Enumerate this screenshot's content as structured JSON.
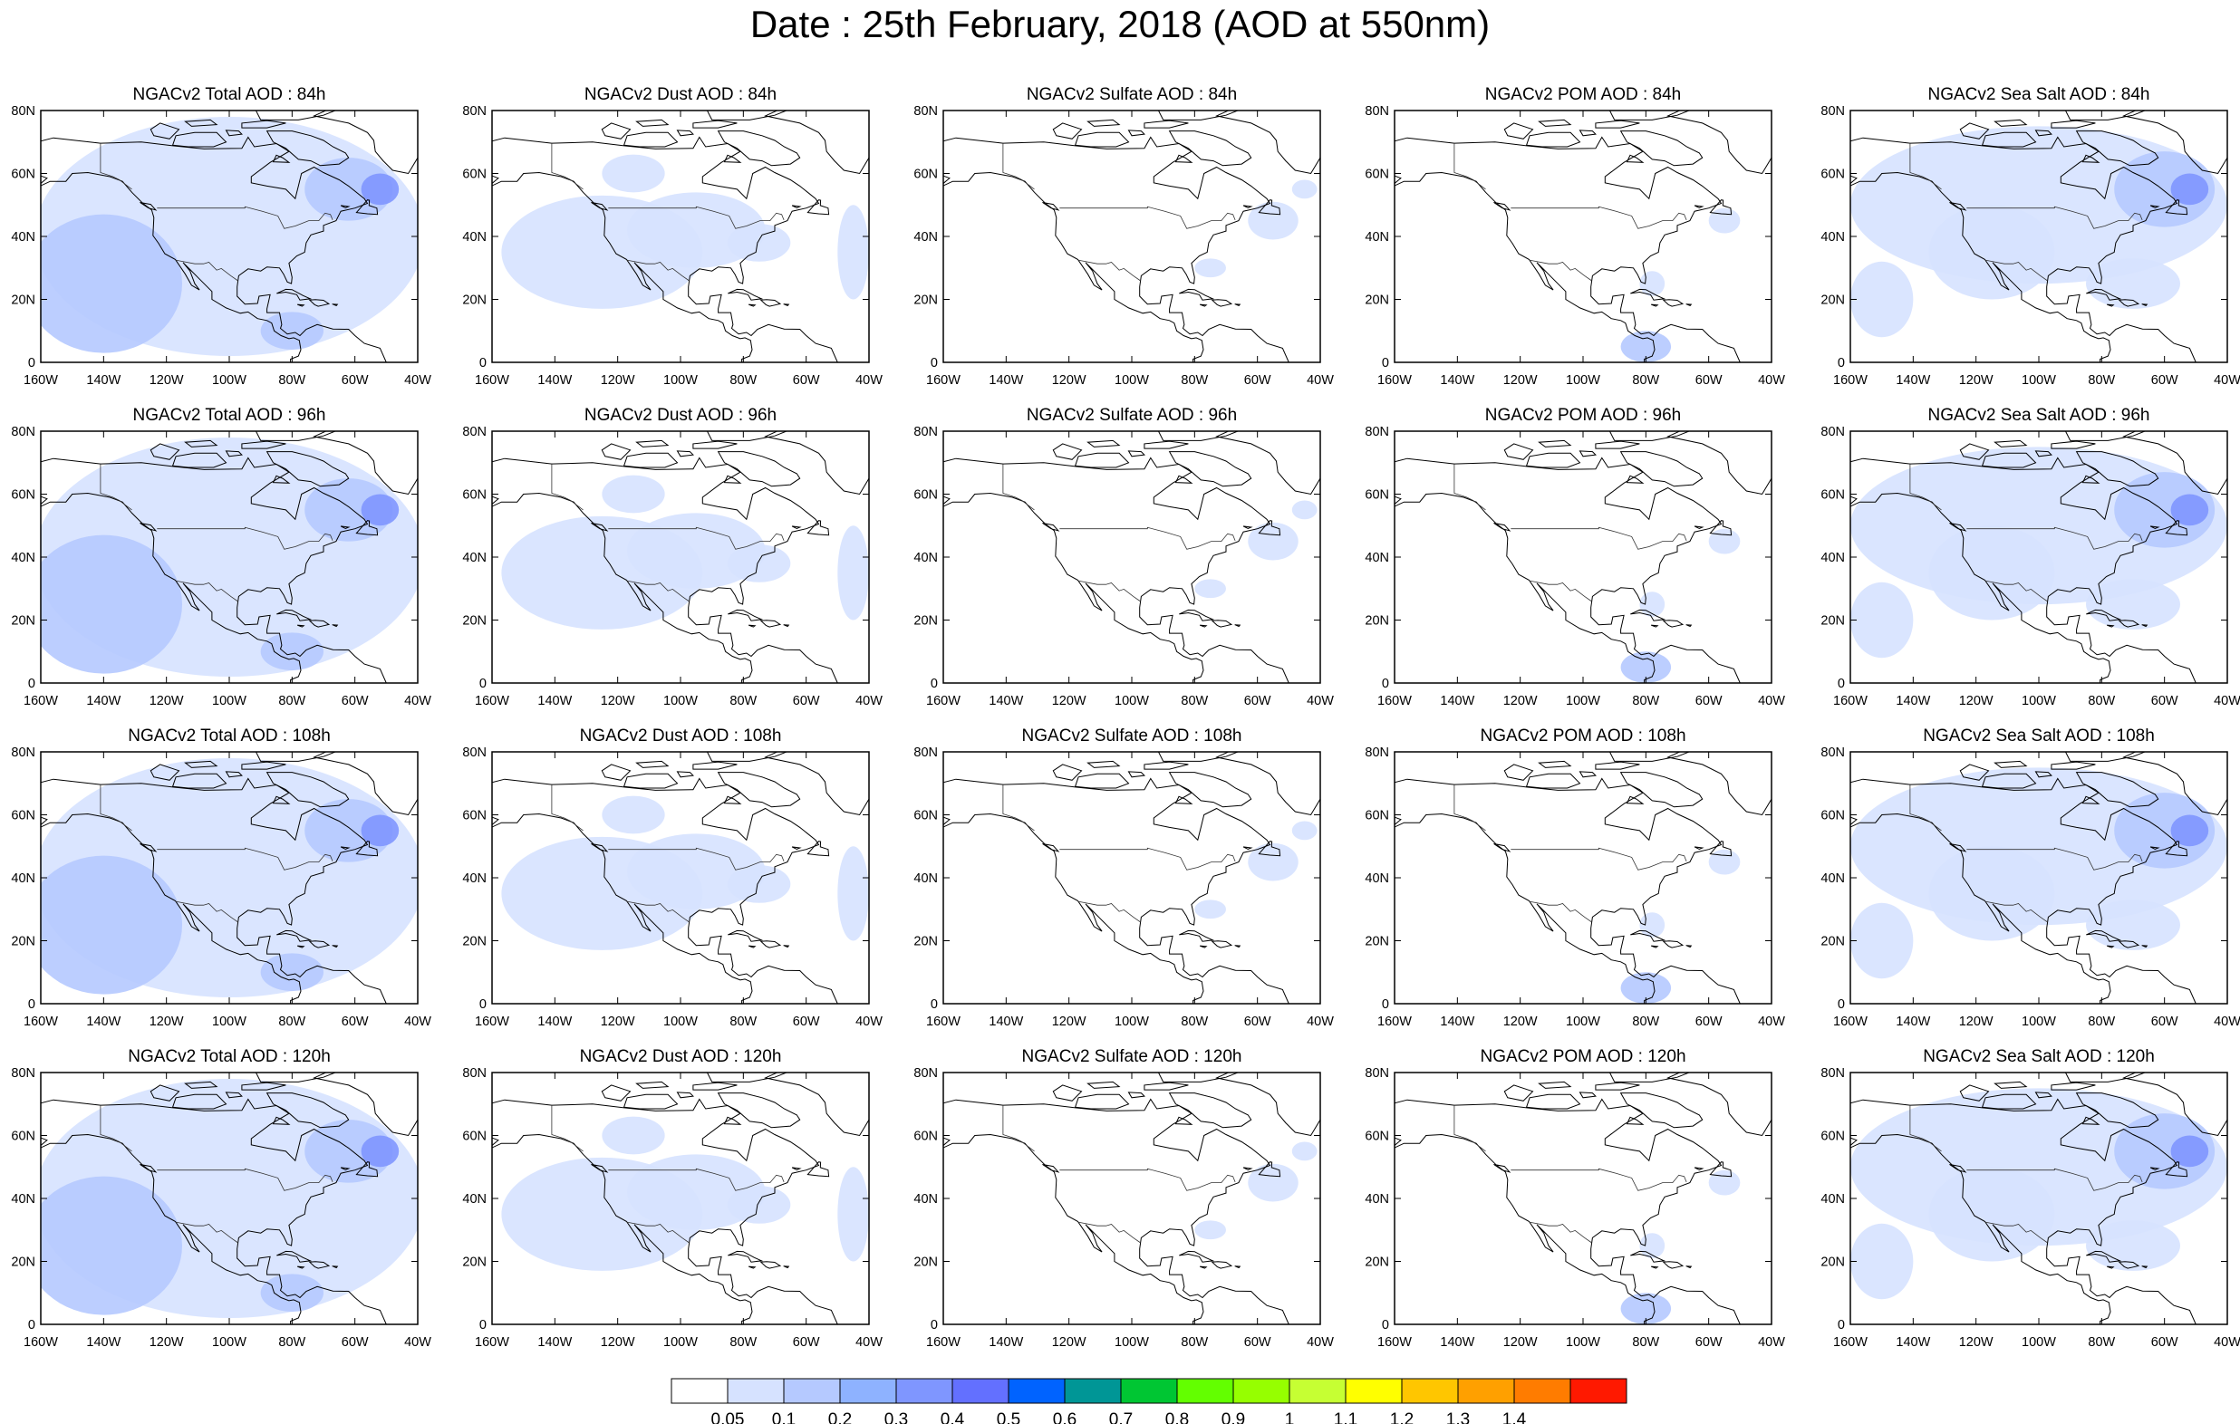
{
  "title": "Date : 25th February, 2018 (AOD at 550nm)",
  "species": [
    {
      "key": "total",
      "color_group": "total"
    },
    {
      "key": "dust",
      "color_group": "dust"
    },
    {
      "key": "sulfate",
      "color_group": "sulfate"
    },
    {
      "key": "pom",
      "color_group": "pom"
    },
    {
      "key": "seasalt",
      "color_group": "seasalt"
    }
  ],
  "forecast_hours": [
    "84h",
    "96h",
    "108h",
    "120h"
  ],
  "panel_titles": [
    [
      "NGACv2 Total AOD : 84h",
      "NGACv2 Dust AOD : 84h",
      "NGACv2 Sulfate AOD : 84h",
      "NGACv2 POM AOD : 84h",
      "NGACv2 Sea Salt AOD : 84h"
    ],
    [
      "NGACv2 Total AOD : 96h",
      "NGACv2 Dust AOD : 96h",
      "NGACv2 Sulfate AOD : 96h",
      "NGACv2 POM AOD : 96h",
      "NGACv2 Sea Salt AOD : 96h"
    ],
    [
      "NGACv2 Total AOD : 108h",
      "NGACv2 Dust AOD : 108h",
      "NGACv2 Sulfate AOD : 108h",
      "NGACv2 POM AOD : 108h",
      "NGACv2 Sea Salt AOD : 108h"
    ],
    [
      "NGACv2 Total AOD : 120h",
      "NGACv2 Dust AOD : 120h",
      "NGACv2 Sulfate AOD : 120h",
      "NGACv2 POM AOD : 120h",
      "NGACv2 Sea Salt  AOD : 120h"
    ]
  ],
  "map_extent": {
    "lon": [
      -160,
      -40
    ],
    "lat": [
      0,
      80
    ]
  },
  "lon_ticks": [
    {
      "value": -160,
      "label": "160W"
    },
    {
      "value": -140,
      "label": "140W"
    },
    {
      "value": -120,
      "label": "120W"
    },
    {
      "value": -100,
      "label": "100W"
    },
    {
      "value": -80,
      "label": "80W"
    },
    {
      "value": -60,
      "label": "60W"
    },
    {
      "value": -40,
      "label": "40W"
    }
  ],
  "lat_ticks": [
    {
      "value": 0,
      "label": "0"
    },
    {
      "value": 20,
      "label": "20N"
    },
    {
      "value": 40,
      "label": "40N"
    },
    {
      "value": 60,
      "label": "60N"
    },
    {
      "value": 80,
      "label": "80N"
    }
  ],
  "colorbar": {
    "colors": [
      "#ffffff",
      "#d6e2ff",
      "#b5c9ff",
      "#8eb2ff",
      "#7f96ff",
      "#6370ff",
      "#0063ff",
      "#009696",
      "#00c633",
      "#63ff00",
      "#96ff00",
      "#c6ff33",
      "#ffff00",
      "#ffc600",
      "#ffa000",
      "#ff7c00",
      "#ff1900"
    ],
    "labels": [
      "0.05",
      "0.1",
      "0.2",
      "0.3",
      "0.4",
      "0.5",
      "0.6",
      "0.7",
      "0.8",
      "0.9",
      "1",
      "1.1",
      "1.2",
      "1.3",
      "1.4"
    ]
  },
  "colors": {
    "coast": "#000000",
    "border": "#333333"
  }
}
